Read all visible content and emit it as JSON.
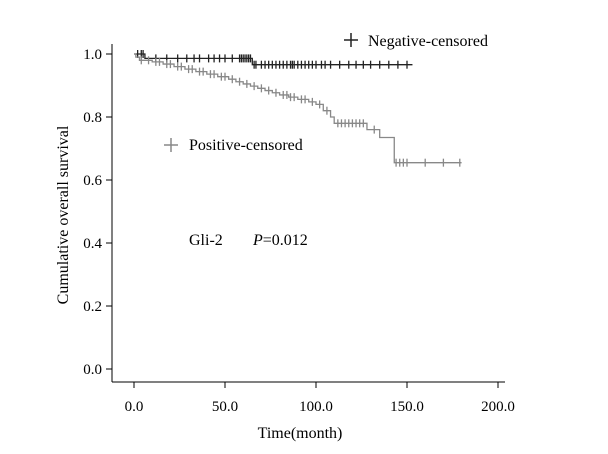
{
  "chart_data": {
    "type": "line",
    "title": "",
    "xlabel": "Time(month)",
    "ylabel": "Cumulative overall survival",
    "xlim": [
      0,
      200
    ],
    "ylim": [
      0,
      1.0
    ],
    "x_ticks": [
      0,
      50,
      100,
      150,
      200
    ],
    "x_tick_labels": [
      "0.0",
      "50.0",
      "100.0",
      "150.0",
      "200.0"
    ],
    "y_ticks": [
      0,
      0.2,
      0.4,
      0.6,
      0.8,
      1.0
    ],
    "y_tick_labels": [
      "0.0",
      "0.2",
      "0.4",
      "0.6",
      "0.8",
      "1.0"
    ],
    "grid": false,
    "annotation": {
      "gene": "Gli-2",
      "p_label": "P",
      "p_value": "=0.012"
    },
    "series": [
      {
        "name": "Negative-censored",
        "color": "#222222",
        "steps": [
          [
            0,
            1.0
          ],
          [
            6,
            0.986
          ],
          [
            65,
            0.966
          ],
          [
            153,
            0.966
          ]
        ],
        "censored": [
          2,
          4,
          5,
          12,
          18,
          24,
          29,
          33,
          36,
          41,
          44,
          47,
          50,
          54,
          58,
          59,
          60,
          61,
          62,
          63,
          64,
          66,
          67,
          70,
          72,
          74,
          76,
          78,
          80,
          82,
          84,
          86,
          87,
          88,
          90,
          92,
          94,
          96,
          98,
          100,
          103,
          105,
          108,
          113,
          118,
          122,
          126,
          130,
          135,
          140,
          145,
          150
        ]
      },
      {
        "name": "Positive-censored",
        "color": "#888888",
        "steps": [
          [
            0,
            1.0
          ],
          [
            1,
            0.99
          ],
          [
            3,
            0.98
          ],
          [
            10,
            0.975
          ],
          [
            16,
            0.968
          ],
          [
            22,
            0.96
          ],
          [
            28,
            0.952
          ],
          [
            34,
            0.944
          ],
          [
            40,
            0.936
          ],
          [
            46,
            0.928
          ],
          [
            52,
            0.92
          ],
          [
            56,
            0.912
          ],
          [
            60,
            0.905
          ],
          [
            64,
            0.898
          ],
          [
            68,
            0.891
          ],
          [
            72,
            0.884
          ],
          [
            76,
            0.877
          ],
          [
            80,
            0.87
          ],
          [
            85,
            0.863
          ],
          [
            90,
            0.856
          ],
          [
            96,
            0.848
          ],
          [
            100,
            0.84
          ],
          [
            104,
            0.82
          ],
          [
            108,
            0.8
          ],
          [
            110,
            0.78
          ],
          [
            128,
            0.76
          ],
          [
            135,
            0.735
          ],
          [
            143,
            0.655
          ],
          [
            180,
            0.655
          ]
        ],
        "censored": [
          4,
          8,
          12,
          14,
          18,
          20,
          24,
          26,
          30,
          32,
          36,
          38,
          42,
          44,
          48,
          50,
          54,
          58,
          62,
          66,
          70,
          74,
          78,
          82,
          84,
          86,
          88,
          92,
          94,
          98,
          102,
          106,
          112,
          114,
          116,
          118,
          120,
          122,
          124,
          126,
          132,
          144,
          146,
          148,
          150,
          160,
          170,
          179
        ]
      }
    ]
  },
  "legend": {
    "negative_label": "Negative-censored",
    "positive_label": "Positive-censored"
  }
}
